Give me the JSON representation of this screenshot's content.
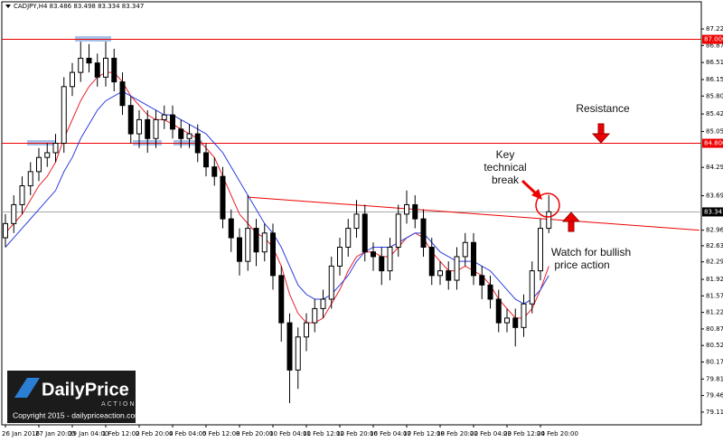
{
  "chart_data": {
    "type": "candlestick",
    "header": "CADJPY,H4 83.486 83.498 83.334 83.347",
    "categories": [
      "26 Jan 2016",
      null,
      null,
      null,
      "27 Jan 20:00",
      null,
      null,
      null,
      "29 Jan 04:00",
      null,
      null,
      null,
      "1 Feb 12:00",
      null,
      null,
      null,
      "2 Feb 20:00",
      null,
      null,
      null,
      "4 Feb 04:00",
      null,
      null,
      null,
      "5 Feb 12:00",
      null,
      null,
      null,
      "8 Feb 20:00",
      null,
      null,
      null,
      "10 Feb 04:00",
      null,
      null,
      null,
      "11 Feb 12:00",
      null,
      null,
      null,
      "12 Feb 20:00",
      null,
      null,
      null,
      "16 Feb 04:00",
      null,
      null,
      null,
      "17 Feb 12:00",
      null,
      null,
      null,
      "18 Feb 20:00",
      null,
      null,
      null,
      "22 Feb 04:00",
      null,
      null,
      null,
      "23 Feb 12:00",
      null,
      null,
      null,
      "24 Feb 20:00",
      null
    ],
    "open": [
      82.8,
      83.1,
      83.5,
      83.9,
      84.2,
      84.5,
      84.6,
      84.8,
      86.0,
      86.3,
      86.6,
      86.5,
      86.2,
      86.6,
      86.1,
      85.6,
      85.0,
      85.3,
      84.9,
      85.3,
      85.4,
      85.1,
      84.9,
      85.0,
      84.6,
      84.3,
      84.1,
      83.2,
      82.8,
      82.3,
      83.0,
      82.5,
      82.9,
      82.0,
      81.0,
      80.0,
      80.7,
      81.0,
      81.3,
      81.5,
      82.2,
      82.6,
      83.0,
      83.3,
      82.5,
      82.4,
      82.1,
      82.6,
      83.3,
      83.5,
      83.2,
      82.6,
      82.0,
      82.1,
      81.9,
      82.4,
      82.7,
      82.0,
      81.8,
      81.5,
      81.0,
      81.1,
      80.9,
      81.4,
      82.1,
      83.0
    ],
    "high": [
      83.3,
      83.7,
      84.1,
      84.4,
      84.7,
      84.8,
      85.0,
      86.2,
      86.5,
      86.95,
      86.9,
      86.7,
      86.95,
      86.8,
      86.3,
      85.8,
      85.5,
      85.5,
      85.5,
      85.6,
      85.6,
      85.3,
      85.2,
      85.2,
      84.8,
      84.5,
      84.3,
      83.4,
      83.0,
      83.7,
      83.2,
      83.1,
      83.1,
      82.2,
      81.2,
      80.9,
      81.2,
      81.5,
      81.7,
      82.4,
      82.8,
      83.2,
      83.6,
      83.5,
      82.7,
      82.6,
      82.8,
      83.5,
      83.8,
      83.7,
      83.4,
      82.8,
      82.3,
      82.3,
      82.6,
      82.9,
      82.9,
      82.2,
      82.0,
      81.7,
      81.3,
      81.3,
      81.6,
      82.3,
      83.2,
      83.7
    ],
    "low": [
      82.6,
      82.9,
      83.3,
      83.7,
      84.0,
      84.3,
      84.4,
      84.6,
      85.8,
      86.1,
      86.3,
      86.0,
      86.0,
      85.9,
      85.4,
      84.8,
      84.7,
      84.6,
      84.7,
      85.1,
      84.9,
      84.7,
      84.7,
      84.4,
      84.1,
      83.9,
      83.0,
      82.5,
      82.0,
      82.1,
      82.2,
      82.3,
      81.7,
      80.6,
      79.3,
      79.6,
      80.4,
      80.8,
      81.1,
      81.3,
      82.0,
      82.4,
      82.8,
      82.3,
      82.1,
      81.8,
      81.9,
      82.4,
      83.1,
      83.0,
      82.4,
      81.8,
      81.8,
      81.7,
      81.7,
      82.2,
      81.8,
      81.5,
      81.3,
      80.8,
      80.8,
      80.5,
      80.7,
      81.2,
      81.9,
      82.9
    ],
    "close": [
      83.1,
      83.5,
      83.9,
      84.2,
      84.5,
      84.6,
      84.8,
      86.0,
      86.3,
      86.6,
      86.5,
      86.2,
      86.6,
      86.1,
      85.6,
      85.0,
      85.3,
      84.9,
      85.3,
      85.4,
      85.1,
      84.9,
      85.0,
      84.6,
      84.3,
      84.1,
      83.2,
      82.8,
      82.3,
      83.0,
      82.5,
      82.9,
      82.0,
      81.0,
      80.0,
      80.7,
      81.0,
      81.3,
      81.5,
      82.2,
      82.6,
      83.0,
      83.3,
      82.5,
      82.4,
      82.1,
      82.6,
      83.3,
      83.5,
      83.2,
      82.6,
      82.0,
      82.1,
      81.9,
      82.4,
      82.7,
      82.0,
      81.8,
      81.5,
      81.0,
      81.1,
      80.9,
      81.4,
      82.1,
      83.0,
      83.35
    ],
    "series": [
      {
        "color": "#e8202a",
        "values": [
          82.9,
          83.1,
          83.3,
          83.6,
          83.9,
          84.1,
          84.4,
          84.9,
          85.3,
          85.7,
          86.0,
          86.2,
          86.3,
          86.3,
          86.1,
          85.8,
          85.6,
          85.4,
          85.3,
          85.3,
          85.2,
          85.1,
          85.0,
          84.9,
          84.7,
          84.5,
          84.1,
          83.7,
          83.3,
          83.1,
          82.9,
          82.8,
          82.6,
          82.2,
          81.6,
          81.2,
          81.0,
          81.0,
          81.1,
          81.4,
          81.7,
          82.1,
          82.4,
          82.5,
          82.5,
          82.4,
          82.4,
          82.6,
          82.8,
          82.9,
          82.8,
          82.5,
          82.3,
          82.1,
          82.1,
          82.2,
          82.1,
          82.0,
          81.8,
          81.5,
          81.3,
          81.1,
          81.1,
          81.3,
          81.7,
          82.2
        ]
      },
      {
        "color": "#2b3ee0",
        "values": [
          82.6,
          82.8,
          83.0,
          83.2,
          83.4,
          83.6,
          83.8,
          84.2,
          84.5,
          84.9,
          85.2,
          85.5,
          85.7,
          85.8,
          85.9,
          85.8,
          85.7,
          85.6,
          85.5,
          85.4,
          85.4,
          85.3,
          85.2,
          85.1,
          85.0,
          84.8,
          84.6,
          84.3,
          84.0,
          83.7,
          83.4,
          83.1,
          82.9,
          82.6,
          82.2,
          81.8,
          81.6,
          81.5,
          81.5,
          81.6,
          81.8,
          82.0,
          82.3,
          82.5,
          82.6,
          82.6,
          82.6,
          82.7,
          82.8,
          82.9,
          82.9,
          82.7,
          82.5,
          82.4,
          82.3,
          82.3,
          82.3,
          82.2,
          82.1,
          81.9,
          81.7,
          81.5,
          81.4,
          81.5,
          81.7,
          82.0
        ]
      }
    ],
    "levels": [
      {
        "value": 87.0,
        "label": "87.000"
      },
      {
        "value": 84.8,
        "label": "84.800"
      }
    ],
    "current_price": {
      "value": 83.347,
      "label": "83.347"
    },
    "trendline": {
      "x": [
        29,
        83
      ],
      "y": [
        83.66,
        82.96
      ]
    },
    "ylim": [
      78.84,
      87.68
    ],
    "yticks": [
      {
        "value": 87.22,
        "label": "87.220"
      },
      {
        "value": 86.87,
        "label": "86.870"
      },
      {
        "value": 86.51,
        "label": "86.510"
      },
      {
        "value": 86.15,
        "label": "86.150"
      },
      {
        "value": 85.8,
        "label": "85.800"
      },
      {
        "value": 85.42,
        "label": "85.420"
      },
      {
        "value": 85.05,
        "label": "85.050"
      },
      {
        "value": 84.29,
        "label": "84.290"
      },
      {
        "value": 83.69,
        "label": "83.690"
      },
      {
        "value": 82.96,
        "label": "82.960"
      },
      {
        "value": 82.63,
        "label": "82.630"
      },
      {
        "value": 82.29,
        "label": "82.290"
      },
      {
        "value": 81.92,
        "label": "81.920"
      },
      {
        "value": 81.57,
        "label": "81.570"
      },
      {
        "value": 81.22,
        "label": "81.220"
      },
      {
        "value": 80.87,
        "label": "80.870"
      },
      {
        "value": 80.52,
        "label": "80.520"
      },
      {
        "value": 80.17,
        "label": "80.170"
      },
      {
        "value": 79.81,
        "label": "79.810"
      },
      {
        "value": 79.46,
        "label": "79.460"
      },
      {
        "value": 79.11,
        "label": "79.110"
      }
    ],
    "annotations": {
      "resistance": "Resistance",
      "key_break": [
        "Key",
        "technical",
        "break"
      ],
      "watch": [
        "Watch for bullish",
        "price action"
      ]
    },
    "logo": {
      "brand": "DailyPrice",
      "tagline": "ACTION",
      "copyright": "Copyright 2015 - dailypriceaction.com"
    }
  }
}
